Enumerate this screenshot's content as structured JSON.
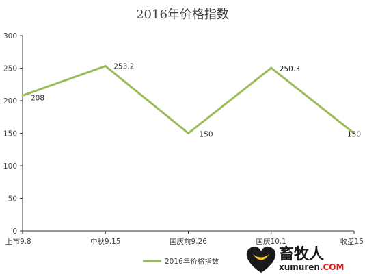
{
  "chart_data": {
    "type": "line",
    "title": "2016年价格指数",
    "categories": [
      "上市9.8",
      "中秋9.15",
      "国庆前9.26",
      "国庆10.1",
      "收盘15"
    ],
    "series": [
      {
        "name": "2016年价格指数",
        "values": [
          208,
          253.2,
          150,
          250.3,
          150
        ],
        "color": "#9bbb59"
      }
    ],
    "data_labels": [
      "208",
      "253.2",
      "150",
      "250.3",
      "150"
    ],
    "ylim": [
      0,
      300
    ],
    "yticks": [
      0,
      50,
      100,
      150,
      200,
      250,
      300
    ],
    "grid": false,
    "legend": "bottom"
  },
  "watermark": {
    "text_main": "畜牧人",
    "text_sub": "xumuren",
    "text_com": ".COM",
    "icon": "heart-logo-icon",
    "colors": {
      "heart": "#1a1a1a",
      "smile": "#f3c623"
    }
  }
}
